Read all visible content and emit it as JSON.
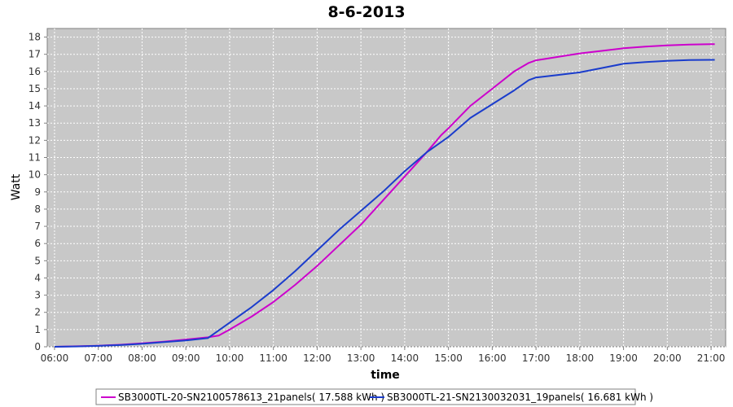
{
  "chart_data": {
    "type": "line",
    "title": "8-6-2013",
    "xlabel": "time",
    "ylabel": "Watt",
    "x_ticks": [
      "06:00",
      "07:00",
      "08:00",
      "09:00",
      "10:00",
      "11:00",
      "12:00",
      "13:00",
      "14:00",
      "15:00",
      "16:00",
      "17:00",
      "18:00",
      "19:00",
      "20:00",
      "21:00"
    ],
    "xlim": [
      "05:50",
      "21:20"
    ],
    "y_ticks": [
      0,
      1,
      2,
      3,
      4,
      5,
      6,
      7,
      8,
      9,
      10,
      11,
      12,
      13,
      14,
      15,
      16,
      17,
      18
    ],
    "ylim": [
      0,
      18.5
    ],
    "grid": true,
    "legend_position": "bottom",
    "background": "#c8c8c8",
    "series": [
      {
        "name": "SB3000TL-20-SN2100578613_21panels( 17.588 kWh )",
        "color": "#cc00cc",
        "points": [
          [
            "06:00",
            0.0
          ],
          [
            "06:30",
            0.03
          ],
          [
            "07:00",
            0.06
          ],
          [
            "07:30",
            0.12
          ],
          [
            "08:00",
            0.2
          ],
          [
            "08:30",
            0.3
          ],
          [
            "09:00",
            0.42
          ],
          [
            "09:30",
            0.55
          ],
          [
            "09:45",
            0.65
          ],
          [
            "10:00",
            1.0
          ],
          [
            "10:30",
            1.75
          ],
          [
            "11:00",
            2.6
          ],
          [
            "11:30",
            3.6
          ],
          [
            "12:00",
            4.7
          ],
          [
            "12:30",
            5.9
          ],
          [
            "13:00",
            7.1
          ],
          [
            "13:30",
            8.5
          ],
          [
            "14:00",
            9.9
          ],
          [
            "14:30",
            11.3
          ],
          [
            "14:50",
            12.3
          ],
          [
            "15:00",
            12.7
          ],
          [
            "15:30",
            14.0
          ],
          [
            "16:00",
            15.0
          ],
          [
            "16:30",
            16.0
          ],
          [
            "16:50",
            16.5
          ],
          [
            "17:00",
            16.65
          ],
          [
            "17:30",
            16.85
          ],
          [
            "18:00",
            17.05
          ],
          [
            "18:30",
            17.2
          ],
          [
            "19:00",
            17.35
          ],
          [
            "19:30",
            17.45
          ],
          [
            "20:00",
            17.52
          ],
          [
            "20:30",
            17.57
          ],
          [
            "21:00",
            17.59
          ],
          [
            "21:05",
            17.59
          ]
        ]
      },
      {
        "name": "SB3000TL-21-SN2130032031_19panels( 16.681 kWh )",
        "color": "#1a3ccc",
        "points": [
          [
            "06:00",
            0.0
          ],
          [
            "06:30",
            0.02
          ],
          [
            "07:00",
            0.05
          ],
          [
            "07:30",
            0.1
          ],
          [
            "08:00",
            0.17
          ],
          [
            "08:30",
            0.27
          ],
          [
            "09:00",
            0.37
          ],
          [
            "09:30",
            0.5
          ],
          [
            "10:00",
            1.4
          ],
          [
            "10:30",
            2.3
          ],
          [
            "11:00",
            3.3
          ],
          [
            "11:30",
            4.4
          ],
          [
            "12:00",
            5.6
          ],
          [
            "12:30",
            6.8
          ],
          [
            "13:00",
            7.9
          ],
          [
            "13:30",
            9.0
          ],
          [
            "14:00",
            10.2
          ],
          [
            "14:30",
            11.3
          ],
          [
            "15:00",
            12.2
          ],
          [
            "15:30",
            13.3
          ],
          [
            "16:00",
            14.1
          ],
          [
            "16:30",
            14.9
          ],
          [
            "16:50",
            15.5
          ],
          [
            "17:00",
            15.65
          ],
          [
            "17:30",
            15.8
          ],
          [
            "18:00",
            15.95
          ],
          [
            "18:30",
            16.2
          ],
          [
            "19:00",
            16.45
          ],
          [
            "19:30",
            16.55
          ],
          [
            "20:00",
            16.62
          ],
          [
            "20:30",
            16.67
          ],
          [
            "21:00",
            16.68
          ],
          [
            "21:05",
            16.68
          ]
        ]
      }
    ]
  }
}
